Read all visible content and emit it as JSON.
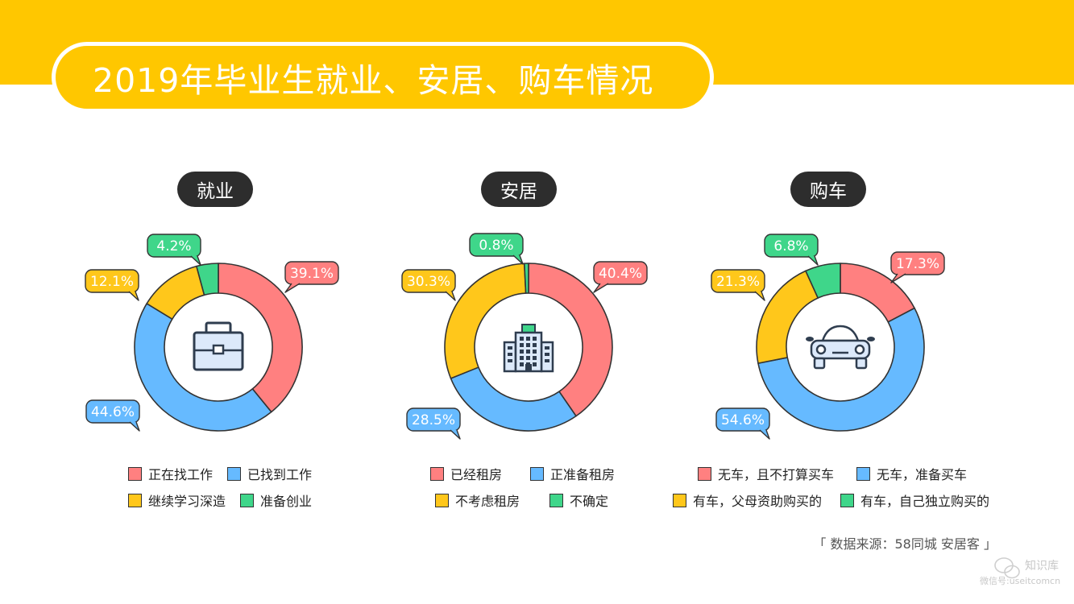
{
  "title": "2019年毕业生就业、安居、购车情况",
  "source": "「 数据来源：58同城  安居客 」",
  "watermark": {
    "name": "知识库",
    "id": "微信号:useitcomcn"
  },
  "colors": {
    "red": "#FF8080",
    "blue": "#66BAFF",
    "yellow": "#FFC71B",
    "green": "#3FD68A",
    "band": "#FFC700",
    "dark": "#2d2d2d"
  },
  "chart_data": [
    {
      "type": "pie",
      "title": "就业",
      "icon": "briefcase-icon",
      "categories": [
        "正在找工作",
        "已找到工作",
        "继续学习深造",
        "准备创业"
      ],
      "values": [
        39.1,
        44.6,
        12.1,
        4.2
      ],
      "labels": [
        "39.1%",
        "44.6%",
        "12.1%",
        "4.2%"
      ],
      "colors": [
        "#FF8080",
        "#66BAFF",
        "#FFC71B",
        "#3FD68A"
      ]
    },
    {
      "type": "pie",
      "title": "安居",
      "icon": "building-icon",
      "categories": [
        "已经租房",
        "正准备租房",
        "不考虑租房",
        "不确定"
      ],
      "values": [
        40.4,
        28.5,
        30.3,
        0.8
      ],
      "labels": [
        "40.4%",
        "28.5%",
        "30.3%",
        "0.8%"
      ],
      "colors": [
        "#FF8080",
        "#66BAFF",
        "#FFC71B",
        "#3FD68A"
      ]
    },
    {
      "type": "pie",
      "title": "购车",
      "icon": "car-icon",
      "categories": [
        "无车，且不打算买车",
        "无车，准备买车",
        "有车，父母资助购买的",
        "有车，自己独立购买的"
      ],
      "values": [
        17.3,
        54.6,
        21.3,
        6.8
      ],
      "labels": [
        "17.3%",
        "54.6%",
        "21.3%",
        "6.8%"
      ],
      "colors": [
        "#FF8080",
        "#66BAFF",
        "#FFC71B",
        "#3FD68A"
      ]
    }
  ]
}
